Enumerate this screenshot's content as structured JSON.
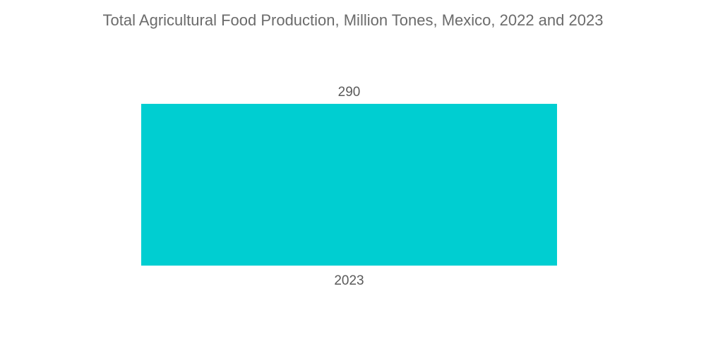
{
  "chart_data": {
    "type": "bar",
    "title": "Total Agricultural Food Production, Million Tones, Mexico, 2022 and 2023",
    "categories": [
      "2023"
    ],
    "values": [
      290
    ],
    "value_labels": [
      "290"
    ],
    "xlabel": "",
    "ylabel": "",
    "ylim": [
      0,
      290
    ],
    "grid": false,
    "legend": "none",
    "colors": {
      "bar": "#00CED1",
      "title": "#6B6B6B",
      "labels": "#5A5A5A"
    }
  }
}
